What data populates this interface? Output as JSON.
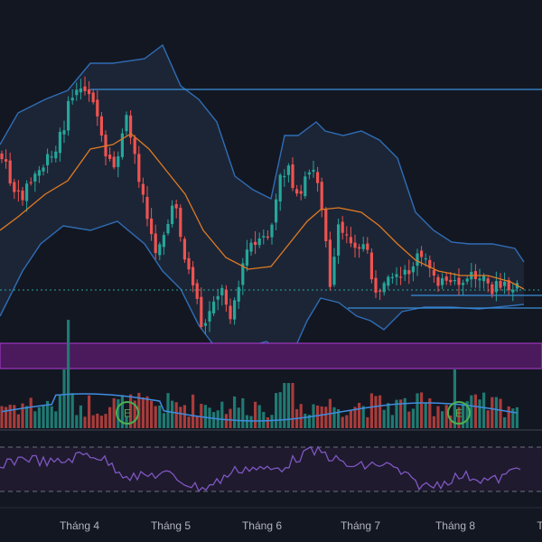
{
  "colors": {
    "background": "#131722",
    "band_fill": "#1c2536",
    "band_line": "#2f6db5",
    "basis_line": "#e07a22",
    "candle_up": "#26a69a",
    "candle_down": "#ef5350",
    "support_zone": "#4a1a5c",
    "support_zone_border": "#b03ad6",
    "horizontal_line": "#3a8fd9",
    "last_price_line": "#26a69a",
    "volume_ma": "#3f8ce0",
    "earnings_marker": "#4caf50",
    "rsi_line": "#7e57c2",
    "rsi_fill": "#1f1a2e",
    "rsi_levels": "#6b6f7a"
  },
  "x_axis": {
    "labels": [
      "Tháng 4",
      "Tháng 5",
      "Tháng 6",
      "Tháng 7",
      "Tháng 8",
      "T"
    ]
  },
  "markers": {
    "earnings": [
      {
        "label": "E"
      },
      {
        "label": "E"
      }
    ]
  }
}
